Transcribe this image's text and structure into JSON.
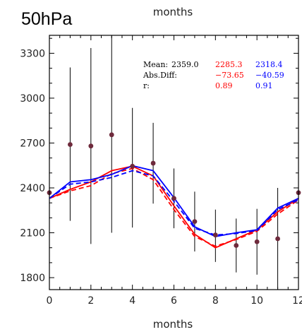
{
  "chart_data": {
    "type": "line",
    "title": "50hPa",
    "top_label": "months",
    "xlabel": "months",
    "ylabel": "",
    "xlim": [
      0,
      12
    ],
    "ylim": [
      1720,
      3420
    ],
    "x_ticks": [
      0,
      2,
      4,
      6,
      8,
      10,
      12
    ],
    "x_tick_labels": [
      "0",
      "2",
      "4",
      "6",
      "8",
      "10",
      "12"
    ],
    "y_ticks": [
      1800,
      2100,
      2400,
      2700,
      3000,
      3300
    ],
    "y_tick_labels": [
      "1800",
      "2100",
      "2400",
      "2700",
      "3000",
      "3300"
    ],
    "grid": false,
    "observations": {
      "color": "#6e2a3c",
      "points": [
        {
          "x": 0,
          "mean": 2368,
          "low": null,
          "high": null
        },
        {
          "x": 1,
          "mean": 2690,
          "low": 2180,
          "high": 3205
        },
        {
          "x": 2,
          "mean": 2680,
          "low": 2025,
          "high": 3335
        },
        {
          "x": 3,
          "mean": 2755,
          "low": 2100,
          "high": 3420
        },
        {
          "x": 4,
          "mean": 2545,
          "low": 2135,
          "high": 2935
        },
        {
          "x": 5,
          "mean": 2565,
          "low": 2295,
          "high": 2835
        },
        {
          "x": 6,
          "mean": 2330,
          "low": 2130,
          "high": 2530
        },
        {
          "x": 7,
          "mean": 2175,
          "low": 1975,
          "high": 2375
        },
        {
          "x": 8,
          "mean": 2085,
          "low": 1905,
          "high": 2255
        },
        {
          "x": 9,
          "mean": 2015,
          "low": 1835,
          "high": 2195
        },
        {
          "x": 10,
          "mean": 2040,
          "low": 1820,
          "high": 2260
        },
        {
          "x": 11,
          "mean": 2060,
          "low": 1720,
          "high": 2400
        },
        {
          "x": 12,
          "mean": 2368,
          "low": null,
          "high": null
        }
      ]
    },
    "series": [
      {
        "color": "#ff0000",
        "dash": false,
        "values": [
          2330,
          2390,
          2440,
          2515,
          2545,
          2480,
          2280,
          2090,
          2000,
          2060,
          2120,
          2240,
          2330
        ]
      },
      {
        "color": "#ff0000",
        "dash": true,
        "values": [
          2330,
          2380,
          2415,
          2495,
          2530,
          2455,
          2255,
          2075,
          2010,
          2055,
          2110,
          2225,
          2320
        ]
      },
      {
        "color": "#0000ff",
        "dash": false,
        "values": [
          2330,
          2440,
          2455,
          2490,
          2548,
          2515,
          2335,
          2140,
          2075,
          2100,
          2120,
          2265,
          2330
        ]
      },
      {
        "color": "#0000ff",
        "dash": true,
        "values": [
          2330,
          2425,
          2440,
          2470,
          2515,
          2480,
          2310,
          2130,
          2085,
          2095,
          2115,
          2255,
          2320
        ]
      }
    ],
    "stats": {
      "mean_label": "Mean:",
      "mean_obs": "2359.0",
      "mean_red": "2285.3",
      "mean_blue": "2318.4",
      "absdiff_label": "Abs.Diff:",
      "absdiff_red": "−73.65",
      "absdiff_blue": "−40.59",
      "r_label": "r:",
      "r_red": "0.89",
      "r_blue": "0.91",
      "red_color": "#ff0000",
      "blue_color": "#0000ff"
    }
  }
}
